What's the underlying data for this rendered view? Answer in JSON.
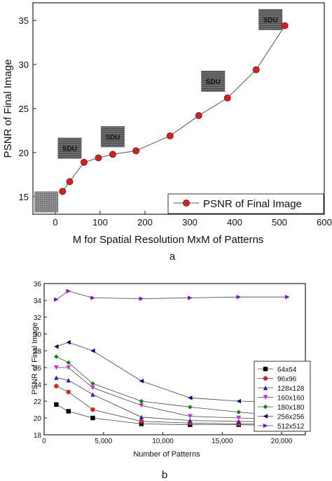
{
  "chart_data": [
    {
      "type": "line",
      "panel_label": "a",
      "xlabel": "M for Spatial Resolution MxM of Patterns",
      "ylabel": "PSNR of Final  Image",
      "xlim": [
        -50,
        600
      ],
      "ylim": [
        13,
        37
      ],
      "xticks": [
        "0",
        "100",
        "200",
        "300",
        "400",
        "500",
        "600"
      ],
      "yticks": [
        "15",
        "20",
        "25",
        "30",
        "35"
      ],
      "legend_position": "bottom-right",
      "grid": false,
      "series": [
        {
          "name": "PSNR of Final  Image",
          "color": "#d32020",
          "x": [
            16,
            32,
            64,
            96,
            128,
            180,
            256,
            320,
            384,
            448,
            512
          ],
          "y": [
            15.6,
            16.7,
            18.9,
            19.4,
            19.8,
            20.2,
            21.9,
            24.2,
            26.2,
            29.4,
            34.4
          ]
        }
      ],
      "thumbnails": [
        {
          "text": "",
          "x": -20,
          "y": 14.4
        },
        {
          "text": "SDU",
          "x": 32,
          "y": 20.5
        },
        {
          "text": "SDU",
          "x": 128,
          "y": 21.8
        },
        {
          "text": "SDU",
          "x": 352,
          "y": 28.1
        },
        {
          "text": "SDU",
          "x": 480,
          "y": 35.1
        }
      ]
    },
    {
      "type": "line",
      "panel_label": "b",
      "xlabel": "Number of Patterns",
      "ylabel": "PSNR of Final Image",
      "xlim": [
        0,
        22000
      ],
      "ylim": [
        18,
        36
      ],
      "xticks": [
        "0",
        "5,000",
        "10,000",
        "15,000",
        "20,000"
      ],
      "yticks": [
        "18",
        "20",
        "22",
        "24",
        "26",
        "28",
        "30",
        "32",
        "34",
        "36"
      ],
      "legend_position": "right",
      "grid": false,
      "x": [
        1024,
        2048,
        4096,
        8192,
        12288,
        16384,
        20480
      ],
      "series": [
        {
          "name": "64x64",
          "color": "#000000",
          "marker": "square",
          "values": [
            21.6,
            20.8,
            20.0,
            19.3,
            19.2,
            19.2,
            19.1
          ]
        },
        {
          "name": "96x96",
          "color": "#e02020",
          "marker": "circle",
          "values": [
            23.8,
            23.1,
            21.0,
            19.6,
            19.4,
            19.3,
            19.3
          ]
        },
        {
          "name": "128x128",
          "color": "#2020d0",
          "marker": "triangle-up",
          "values": [
            24.8,
            24.5,
            22.8,
            20.1,
            19.7,
            19.6,
            19.5
          ]
        },
        {
          "name": "160x160",
          "color": "#e020e0",
          "marker": "triangle-down",
          "values": [
            26.0,
            26.0,
            23.6,
            21.5,
            20.2,
            20.0,
            19.8
          ]
        },
        {
          "name": "180x180",
          "color": "#108010",
          "marker": "diamond",
          "values": [
            27.3,
            26.6,
            24.1,
            22.0,
            21.3,
            20.7,
            20.2
          ]
        },
        {
          "name": "256x256",
          "color": "#00007a",
          "marker": "triangle-left",
          "values": [
            28.5,
            29.0,
            28.0,
            24.4,
            22.4,
            22.0,
            21.9
          ]
        },
        {
          "name": "512x512",
          "color": "#7a10d0",
          "marker": "triangle-right",
          "values": [
            34.1,
            35.1,
            34.3,
            34.2,
            34.3,
            34.4,
            34.4
          ]
        }
      ]
    }
  ]
}
